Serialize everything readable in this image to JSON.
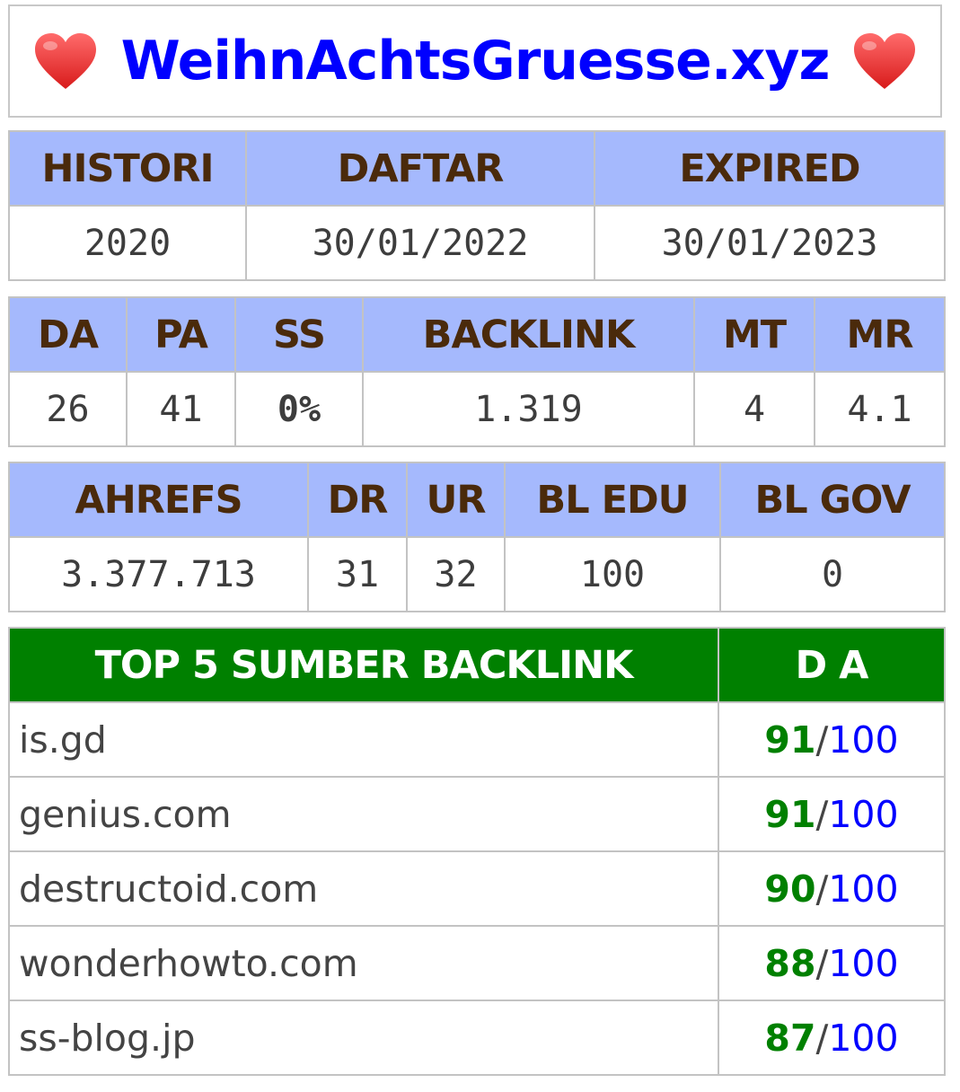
{
  "site": {
    "title": "WeihnAchtsGruesse.xyz",
    "accent_color": "#0000ff",
    "heart_icon": "heart-icon"
  },
  "registration": {
    "headers": [
      "HISTORI",
      "DAFTAR",
      "EXPIRED"
    ],
    "values": [
      "2020",
      "30/01/2022",
      "30/01/2023"
    ]
  },
  "metrics": {
    "headers": [
      "DA",
      "PA",
      "SS",
      "BACKLINK",
      "MT",
      "MR"
    ],
    "values": [
      "26",
      "41",
      "0%",
      "1.319",
      "4",
      "4.1"
    ],
    "ss_color": "#66cc00"
  },
  "ahrefs": {
    "headers": [
      "AHREFS",
      "DR",
      "UR",
      "BL EDU",
      "BL GOV"
    ],
    "values": [
      "3.377.713",
      "31",
      "32",
      "100",
      "0"
    ]
  },
  "top_backlinks": {
    "header_source": "TOP 5 SUMBER BACKLINK",
    "header_da": "D A",
    "separator": "/",
    "max": "100",
    "header_bg": "#008000",
    "rows": [
      {
        "domain": "is.gd",
        "da": "91"
      },
      {
        "domain": "genius.com",
        "da": "91"
      },
      {
        "domain": "destructoid.com",
        "da": "90"
      },
      {
        "domain": "wonderhowto.com",
        "da": "88"
      },
      {
        "domain": "ss-blog.jp",
        "da": "87"
      }
    ]
  },
  "colors": {
    "header_bg": "#a5b9fd",
    "header_text": "#4a2a0b",
    "border": "#c3c3c3"
  }
}
